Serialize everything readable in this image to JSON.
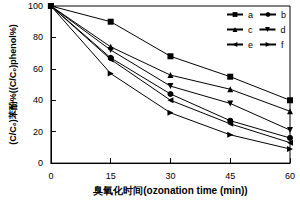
{
  "chart_data": {
    "type": "line",
    "x_label": "臭氧化时间(ozonation time (min))",
    "y_label": "(C/C₀)苯酚%((C/C₀)phenol%)",
    "x": [
      0,
      15,
      30,
      45,
      60
    ],
    "xlim": [
      0,
      60
    ],
    "xticks": [
      0,
      15,
      30,
      45,
      60
    ],
    "ylim": [
      0,
      100
    ],
    "yticks": [
      0,
      20,
      40,
      60,
      80,
      100
    ],
    "legend": "upper right",
    "series": [
      {
        "name": "a",
        "color": "#000000",
        "marker": "square",
        "values": [
          100,
          90,
          68,
          55,
          40
        ]
      },
      {
        "name": "b",
        "color": "#000000",
        "marker": "circle",
        "values": [
          100,
          67,
          44,
          27,
          16
        ]
      },
      {
        "name": "c",
        "color": "#000000",
        "marker": "triangle_up",
        "values": [
          100,
          74,
          56,
          47,
          33
        ]
      },
      {
        "name": "d",
        "color": "#000000",
        "marker": "triangle_down",
        "values": [
          100,
          72,
          49,
          38,
          21
        ]
      },
      {
        "name": "e",
        "color": "#000000",
        "marker": "triangle_left",
        "values": [
          100,
          66,
          40,
          25,
          13
        ]
      },
      {
        "name": "f",
        "color": "#000000",
        "marker": "triangle_right",
        "values": [
          100,
          57,
          32,
          18,
          9
        ]
      }
    ]
  }
}
